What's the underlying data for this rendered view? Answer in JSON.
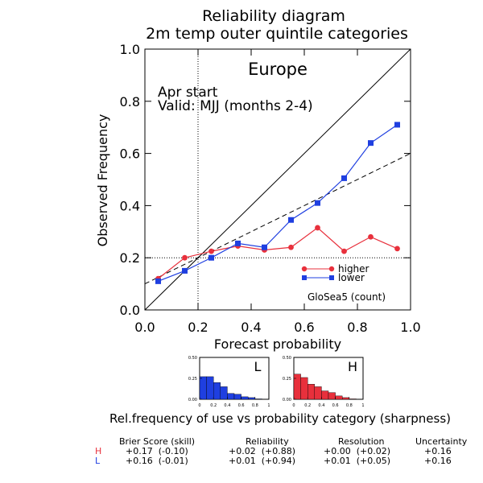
{
  "title_lines": [
    "Reliability diagram",
    "2m temp outer quintile categories"
  ],
  "region": "Europe",
  "annotation_lines": [
    "Apr start",
    "Valid: MJJ (months 2-4)"
  ],
  "model_label": "GloSea5 (count)",
  "sharpness_title": "Rel.frequency of use vs probability category (sharpness)",
  "colors": {
    "higher": "#e8303c",
    "lower": "#1f3fe0",
    "axis": "#000000"
  },
  "chart_data": [
    {
      "type": "line",
      "title": "Reliability diagram",
      "xlabel": "Forecast probability",
      "ylabel": "Observed Frequency",
      "xlim": [
        0.0,
        1.0
      ],
      "ylim": [
        0.0,
        1.0
      ],
      "xticks": [
        "0.0",
        "0.2",
        "0.4",
        "0.6",
        "0.8",
        "1.0"
      ],
      "yticks": [
        "0.0",
        "0.2",
        "0.4",
        "0.6",
        "0.8",
        "1.0"
      ],
      "x": [
        0.05,
        0.15,
        0.25,
        0.35,
        0.45,
        0.55,
        0.65,
        0.75,
        0.85,
        0.95
      ],
      "series": [
        {
          "name": "higher",
          "marker": "circle",
          "values": [
            0.12,
            0.2,
            0.225,
            0.245,
            0.23,
            0.24,
            0.315,
            0.225,
            0.28,
            0.235
          ]
        },
        {
          "name": "lower",
          "marker": "square",
          "values": [
            0.11,
            0.15,
            0.2,
            0.255,
            0.24,
            0.345,
            0.41,
            0.505,
            0.64,
            0.71
          ]
        }
      ],
      "reference_lines": {
        "perfect_reliability": [
          [
            0,
            0
          ],
          [
            1,
            1
          ]
        ],
        "no_skill": [
          [
            0,
            0.1
          ],
          [
            1,
            0.6
          ]
        ],
        "climatology_x": 0.2,
        "climatology_y": 0.2
      },
      "legend": "bottom-right"
    },
    {
      "type": "bar",
      "panel": "L",
      "categories": [
        "0.05",
        "0.15",
        "0.25",
        "0.35",
        "0.45",
        "0.55",
        "0.65",
        "0.75",
        "0.85",
        "0.95"
      ],
      "values": [
        0.27,
        0.27,
        0.2,
        0.15,
        0.07,
        0.06,
        0.03,
        0.02,
        0.005,
        0.002
      ],
      "ylim": [
        0.0,
        0.5
      ],
      "xticks": [
        "0",
        "0.2",
        "0.4",
        "0.6",
        "0.8",
        "1"
      ],
      "yticks": [
        "0.00",
        "0.25",
        "0.50"
      ]
    },
    {
      "type": "bar",
      "panel": "H",
      "categories": [
        "0.05",
        "0.15",
        "0.25",
        "0.35",
        "0.45",
        "0.55",
        "0.65",
        "0.75",
        "0.85",
        "0.95"
      ],
      "values": [
        0.3,
        0.26,
        0.18,
        0.15,
        0.1,
        0.08,
        0.04,
        0.02,
        0.005,
        0.002
      ],
      "ylim": [
        0.0,
        0.5
      ],
      "xticks": [
        "0",
        "0.2",
        "0.4",
        "0.6",
        "0.8",
        "1"
      ],
      "yticks": [
        "0.00",
        "0.25",
        "0.50"
      ]
    }
  ],
  "scores": {
    "headers": [
      "Brier Score (skill)",
      "Reliability",
      "Resolution",
      "Uncertainty"
    ],
    "rows": [
      {
        "label": "H",
        "brier": "+0.17  (-0.10)",
        "reliability": "+0.02  (+0.88)",
        "resolution": "+0.00  (+0.02)",
        "uncertainty": "+0.16"
      },
      {
        "label": "L",
        "brier": "+0.16  (-0.01)",
        "reliability": "+0.01  (+0.94)",
        "resolution": "+0.01  (+0.05)",
        "uncertainty": "+0.16"
      }
    ]
  }
}
